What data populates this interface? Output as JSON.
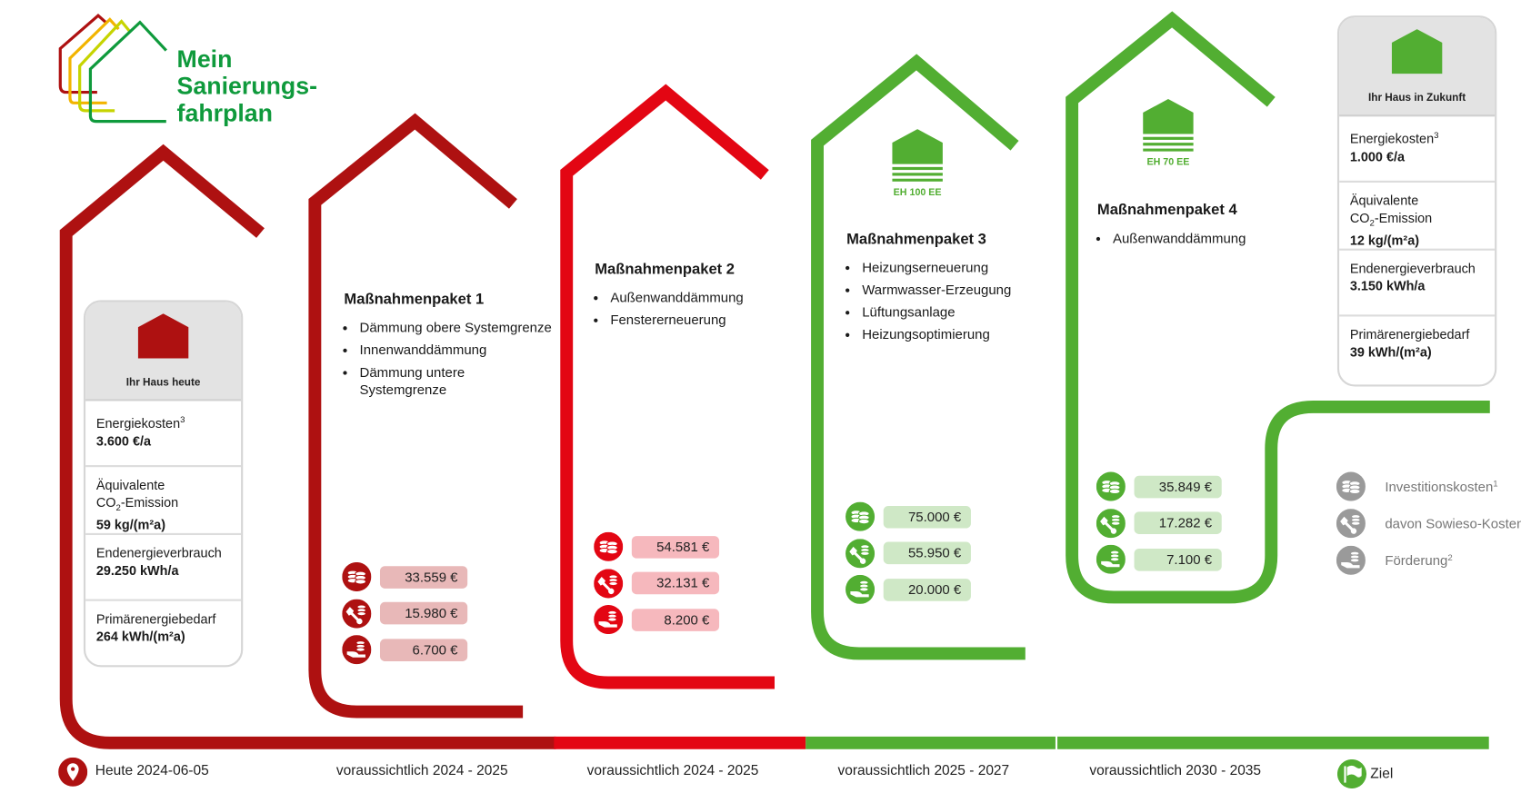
{
  "logo": {
    "line1": "Mein",
    "line2": "Sanierungs-",
    "line3": "fahrplan"
  },
  "colors": {
    "dark_red": "#ae1111",
    "red": "#e30613",
    "green": "#52ae32",
    "logo_green": "#0f9a3c",
    "legend_grey": "#9a9a9a"
  },
  "today_card": {
    "title": "Ihr Haus heute",
    "house_color": "#ae1111",
    "rows": [
      {
        "label": "Energiekosten",
        "sup": "3",
        "value": "3.600 €/a"
      },
      {
        "label": "Äquivalente",
        "label2_pre": "CO",
        "label2_sub": "2",
        "label2_post": "-Emission",
        "value": "59 kg/(m²a)"
      },
      {
        "label": "Endenergieverbrauch",
        "value": "29.250 kWh/a"
      },
      {
        "label": "Primärenergiebedarf",
        "value": "264 kWh/(m²a)"
      }
    ]
  },
  "future_card": {
    "title": "Ihr Haus in Zukunft",
    "house_color": "#52ae32",
    "rows": [
      {
        "label": "Energiekosten",
        "sup": "3",
        "value": "1.000 €/a"
      },
      {
        "label": "Äquivalente",
        "label2_pre": "CO",
        "label2_sub": "2",
        "label2_post": "-Emission",
        "value": "12 kg/(m²a)"
      },
      {
        "label": "Endenergieverbrauch",
        "value": "3.150 kWh/a"
      },
      {
        "label": "Primärenergiebedarf",
        "value": "39 kWh/(m²a)"
      }
    ]
  },
  "packages": [
    {
      "title": "Maßnahmenpaket 1",
      "color": "#ae1111",
      "chip_color": "#e8b8b8",
      "measures": [
        "Dämmung obere Systemgrenze",
        "Innenwanddämmung",
        "Dämmung untere Systemgrenze"
      ],
      "costs": [
        "33.559 €",
        "15.980 €",
        "6.700 €"
      ],
      "timeframe": "voraussichtlich 2024 - 2025"
    },
    {
      "title": "Maßnahmenpaket 2",
      "color": "#e30613",
      "chip_color": "#f6b8bd",
      "measures": [
        "Außenwanddämmung",
        "Fenstererneuerung"
      ],
      "costs": [
        "54.581 €",
        "32.131 €",
        "8.200 €"
      ],
      "timeframe": "voraussichtlich 2024 - 2025"
    },
    {
      "title": "Maßnahmenpaket 3",
      "color": "#52ae32",
      "chip_color": "#cfe8c6",
      "efficiency": "EH 100 EE",
      "measures": [
        "Heizungserneuerung",
        "Warmwasser-Erzeugung",
        "Lüftungsanlage",
        "Heizungsoptimierung"
      ],
      "costs": [
        "75.000 €",
        "55.950 €",
        "20.000 €"
      ],
      "timeframe": "voraussichtlich 2025 - 2027"
    },
    {
      "title": "Maßnahmenpaket 4",
      "color": "#52ae32",
      "chip_color": "#cfe8c6",
      "efficiency": "EH 70 EE",
      "measures": [
        "Außenwanddämmung"
      ],
      "costs": [
        "35.849 €",
        "17.282 €",
        "7.100 €"
      ],
      "timeframe": "voraussichtlich 2030 - 2035"
    }
  ],
  "legend": [
    {
      "icon": "coins-icon",
      "label": "Investitionskosten",
      "sup": "1"
    },
    {
      "icon": "wrench-coins-icon",
      "label": "davon Sowieso-Kosten",
      "sup": ""
    },
    {
      "icon": "hand-coins-icon",
      "label": "Förderung",
      "sup": "2"
    }
  ],
  "timeline": {
    "today": "Heute 2024-06-05",
    "goal": "Ziel"
  }
}
